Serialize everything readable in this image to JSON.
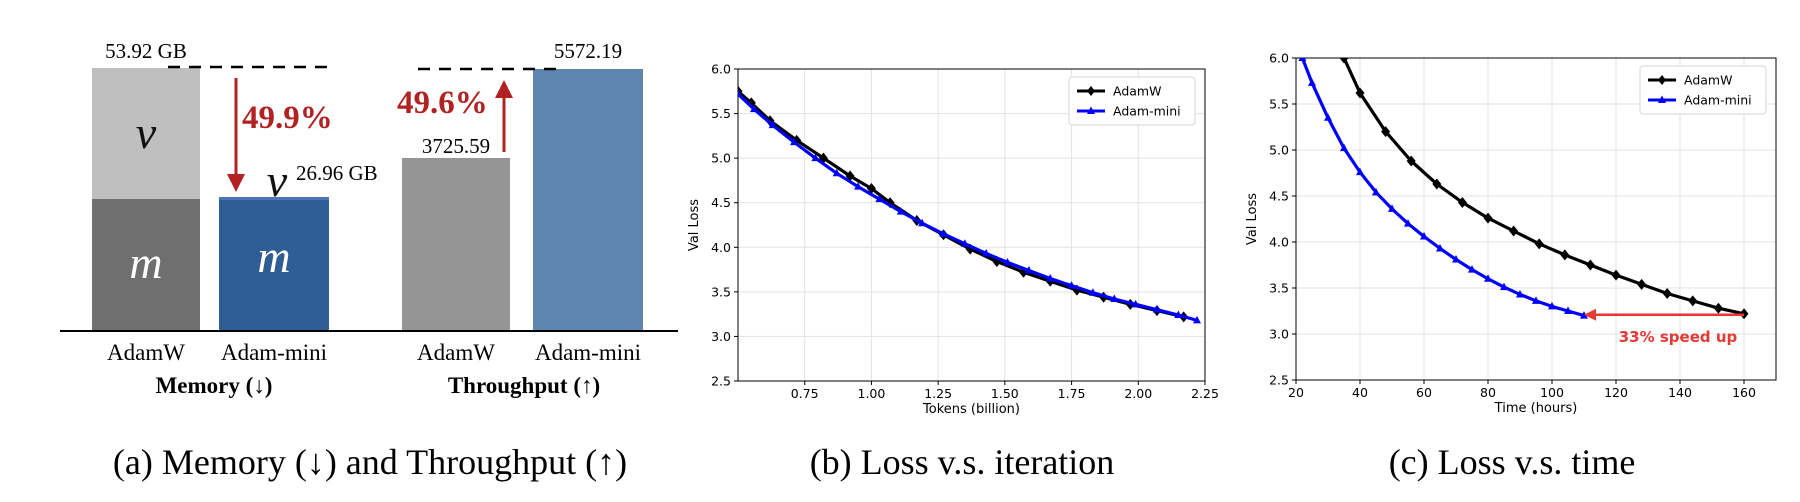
{
  "chart_data": [
    {
      "type": "bar",
      "caption": "(a) Memory (↓) and Throughput (↑)",
      "groups": [
        {
          "label": "Memory (↓)",
          "categories": [
            "AdamW",
            "Adam-mini"
          ],
          "values": [
            53.92,
            26.96
          ],
          "value_labels": [
            "53.92 GB",
            "26.96 GB"
          ],
          "stack": {
            "AdamW": [
              {
                "name": "m",
                "value": 26.96
              },
              {
                "name": "v",
                "value": 26.96
              }
            ],
            "Adam-mini": [
              {
                "name": "m",
                "value": 26.96
              },
              {
                "name": "v",
                "value": 0
              }
            ]
          },
          "annotation": "49.9%"
        },
        {
          "label": "Throughput (↑)",
          "categories": [
            "AdamW",
            "Adam-mini"
          ],
          "values": [
            3725.59,
            5572.19
          ],
          "value_labels": [
            "3725.59",
            "5572.19"
          ],
          "annotation": "49.6%"
        }
      ],
      "colors": {
        "adamw_m": "#6f6f6f",
        "adamw_v": "#bfbfbf",
        "adammini_m": "#2f5d96",
        "adammini_v": "#4a78b4",
        "thr_adamw": "#959595",
        "thr_adammini": "#5e84b0",
        "arrow": "#b22222"
      }
    },
    {
      "type": "line",
      "caption": "(b) Loss v.s. iteration",
      "xlabel": "Tokens (billion)",
      "ylabel": "Val Loss",
      "xlim": [
        0.5,
        2.25
      ],
      "ylim": [
        2.5,
        6.0
      ],
      "xticks": [
        0.75,
        1.0,
        1.25,
        1.5,
        1.75,
        2.0,
        2.25
      ],
      "xtick_labels": [
        "0.75",
        "1.00",
        "1.25",
        "1.50",
        "1.75",
        "2.00",
        "2.25"
      ],
      "yticks": [
        2.5,
        3.0,
        3.5,
        4.0,
        4.5,
        5.0,
        5.5,
        6.0
      ],
      "ytick_labels": [
        "2.5",
        "3.0",
        "3.5",
        "4.0",
        "4.5",
        "5.0",
        "5.5",
        "6.0"
      ],
      "grid": true,
      "legend": "top-right",
      "series": [
        {
          "name": "AdamW",
          "color": "#000000",
          "marker": "diamond",
          "x": [
            0.5,
            0.55,
            0.62,
            0.72,
            0.82,
            0.92,
            1.0,
            1.07,
            1.17,
            1.27,
            1.37,
            1.47,
            1.57,
            1.67,
            1.77,
            1.87,
            1.97,
            2.07,
            2.17
          ],
          "y": [
            5.75,
            5.62,
            5.42,
            5.2,
            5.0,
            4.8,
            4.66,
            4.5,
            4.3,
            4.14,
            3.98,
            3.84,
            3.72,
            3.62,
            3.52,
            3.44,
            3.36,
            3.29,
            3.22
          ]
        },
        {
          "name": "Adam-mini",
          "color": "#0000ff",
          "marker": "triangle",
          "x": [
            0.5,
            0.56,
            0.63,
            0.71,
            0.79,
            0.87,
            0.95,
            1.03,
            1.11,
            1.19,
            1.27,
            1.35,
            1.43,
            1.51,
            1.59,
            1.67,
            1.75,
            1.83,
            1.91,
            1.99,
            2.07,
            2.15,
            2.22
          ],
          "y": [
            5.72,
            5.55,
            5.37,
            5.18,
            5.0,
            4.83,
            4.68,
            4.54,
            4.4,
            4.27,
            4.15,
            4.04,
            3.93,
            3.83,
            3.74,
            3.65,
            3.57,
            3.49,
            3.42,
            3.36,
            3.3,
            3.24,
            3.18
          ]
        }
      ]
    },
    {
      "type": "line",
      "caption": "(c) Loss v.s. time",
      "xlabel": "Time (hours)",
      "ylabel": "Val Loss",
      "xlim": [
        20,
        170
      ],
      "ylim": [
        2.5,
        6.0
      ],
      "xticks": [
        20,
        40,
        60,
        80,
        100,
        120,
        140,
        160
      ],
      "xtick_labels": [
        "20",
        "40",
        "60",
        "80",
        "100",
        "120",
        "140",
        "160"
      ],
      "yticks": [
        2.5,
        3.0,
        3.5,
        4.0,
        4.5,
        5.0,
        5.5,
        6.0
      ],
      "ytick_labels": [
        "2.5",
        "3.0",
        "3.5",
        "4.0",
        "4.5",
        "5.0",
        "5.5",
        "6.0"
      ],
      "grid": true,
      "legend": "top-right",
      "annotation": {
        "text": "33% speed up",
        "color": "#e53935",
        "x_from": 160,
        "x_to": 110,
        "y": 3.22
      },
      "series": [
        {
          "name": "AdamW",
          "color": "#000000",
          "marker": "diamond",
          "x": [
            35,
            40,
            48,
            56,
            64,
            72,
            80,
            88,
            96,
            104,
            112,
            120,
            128,
            136,
            144,
            152,
            160
          ],
          "y": [
            6.0,
            5.62,
            5.2,
            4.88,
            4.63,
            4.43,
            4.26,
            4.12,
            3.98,
            3.86,
            3.75,
            3.64,
            3.54,
            3.44,
            3.36,
            3.28,
            3.22
          ]
        },
        {
          "name": "Adam-mini",
          "color": "#0000ff",
          "marker": "triangle",
          "x": [
            22,
            25,
            30,
            35,
            40,
            45,
            50,
            55,
            60,
            65,
            70,
            75,
            80,
            85,
            90,
            95,
            100,
            105,
            110
          ],
          "y": [
            6.0,
            5.73,
            5.35,
            5.02,
            4.76,
            4.54,
            4.36,
            4.2,
            4.06,
            3.93,
            3.81,
            3.7,
            3.6,
            3.51,
            3.43,
            3.36,
            3.3,
            3.25,
            3.2
          ]
        }
      ]
    }
  ]
}
